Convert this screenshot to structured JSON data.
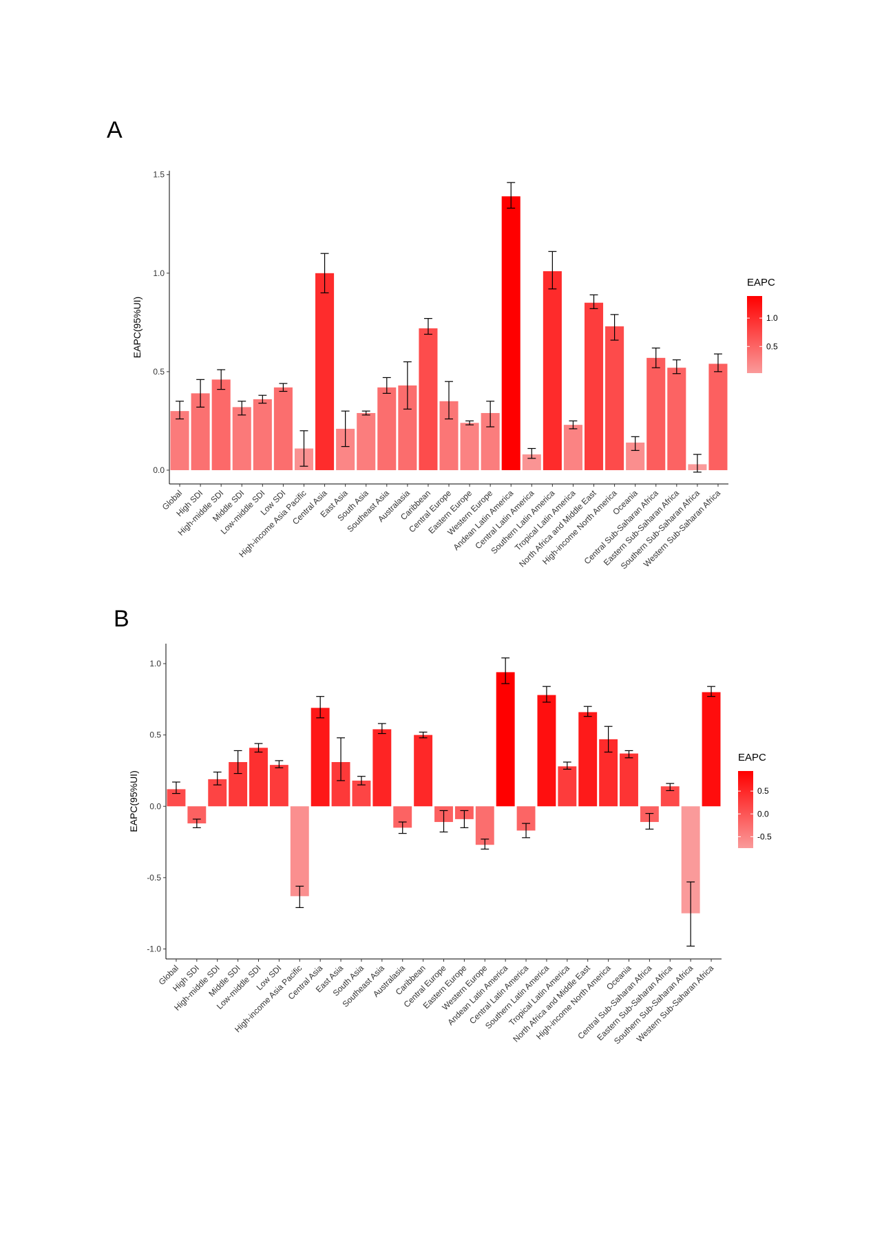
{
  "chart_data": [
    {
      "panel": "A",
      "type": "bar",
      "ylabel": "EAPC(95%UI)",
      "ylim": [
        -0.07,
        1.52
      ],
      "yticks": [
        0.0,
        0.5,
        1.0,
        1.5
      ],
      "ytick_labels": [
        "0.0",
        "0.5",
        "1.0",
        "1.5"
      ],
      "legend": {
        "title": "EAPC",
        "position": "right",
        "ticks": [
          1.0,
          0.5
        ],
        "tick_labels": [
          "1.0",
          "0.5"
        ],
        "color_low": "#fa9a9a",
        "color_high": "#ff0000"
      },
      "categories": [
        "Global",
        "High SDI",
        "High-middle SDI",
        "Middle SDI",
        "Low-middle SDI",
        "Low SDI",
        "High-income Asia Pacific",
        "Central Asia",
        "East Asia",
        "South Asia",
        "Southeast Asia",
        "Australasia",
        "Caribbean",
        "Central Europe",
        "Eastern Europe",
        "Western Europe",
        "Andean Latin America",
        "Central Latin America",
        "Southern Latin America",
        "Tropical Latin America",
        "North Africa and Middle East",
        "High-income North America",
        "Oceania",
        "Central Sub-Saharan Africa",
        "Eastern Sub-Saharan Africa",
        "Southern Sub-Saharan Africa",
        "Western Sub-Saharan Africa"
      ],
      "values": [
        0.3,
        0.39,
        0.46,
        0.32,
        0.36,
        0.42,
        0.11,
        1.0,
        0.21,
        0.29,
        0.42,
        0.43,
        0.72,
        0.35,
        0.24,
        0.29,
        1.39,
        0.08,
        1.01,
        0.23,
        0.85,
        0.73,
        0.14,
        0.57,
        0.52,
        0.03,
        0.54
      ],
      "lower": [
        0.26,
        0.32,
        0.41,
        0.28,
        0.34,
        0.4,
        0.02,
        0.9,
        0.12,
        0.28,
        0.39,
        0.31,
        0.69,
        0.26,
        0.23,
        0.22,
        1.33,
        0.06,
        0.92,
        0.21,
        0.82,
        0.66,
        0.1,
        0.52,
        0.49,
        -0.01,
        0.5
      ],
      "upper": [
        0.35,
        0.46,
        0.51,
        0.35,
        0.38,
        0.44,
        0.2,
        1.1,
        0.3,
        0.3,
        0.47,
        0.55,
        0.77,
        0.45,
        0.25,
        0.35,
        1.46,
        0.11,
        1.11,
        0.25,
        0.89,
        0.79,
        0.17,
        0.62,
        0.56,
        0.08,
        0.59
      ]
    },
    {
      "panel": "B",
      "type": "bar",
      "ylabel": "EAPC(95%UI)",
      "ylim": [
        -1.07,
        1.14
      ],
      "yticks": [
        -1.0,
        -0.5,
        0.0,
        0.5,
        1.0
      ],
      "ytick_labels": [
        "-1.0",
        "-0.5",
        "0.0",
        "0.5",
        "1.0"
      ],
      "legend": {
        "title": "EAPC",
        "position": "right",
        "ticks": [
          0.5,
          0.0,
          -0.5
        ],
        "tick_labels": [
          "0.5",
          "0.0",
          "-0.5"
        ],
        "color_low": "#fa9a9a",
        "color_high": "#ff0000"
      },
      "categories": [
        "Global",
        "High SDI",
        "High-middle SDI",
        "Middle SDI",
        "Low-middle SDI",
        "Low SDI",
        "High-income Asia Pacific",
        "Central Asia",
        "East Asia",
        "South Asia",
        "Southeast Asia",
        "Australasia",
        "Caribbean",
        "Central Europe",
        "Eastern Europe",
        "Western Europe",
        "Andean Latin America",
        "Central Latin America",
        "Southern Latin America",
        "Tropical Latin America",
        "North Africa and Middle East",
        "High-income North America",
        "Oceania",
        "Central Sub-Saharan Africa",
        "Eastern Sub-Saharan Africa",
        "Southern Sub-Saharan Africa",
        "Western Sub-Saharan Africa"
      ],
      "values": [
        0.12,
        -0.12,
        0.19,
        0.31,
        0.41,
        0.29,
        -0.63,
        0.69,
        0.31,
        0.18,
        0.54,
        -0.15,
        0.5,
        -0.11,
        -0.09,
        -0.27,
        0.94,
        -0.17,
        0.78,
        0.28,
        0.66,
        0.47,
        0.37,
        -0.11,
        0.14,
        -0.75,
        0.8
      ],
      "lower": [
        0.09,
        -0.15,
        0.15,
        0.23,
        0.38,
        0.27,
        -0.71,
        0.62,
        0.18,
        0.15,
        0.51,
        -0.19,
        0.48,
        -0.18,
        -0.15,
        -0.3,
        0.86,
        -0.22,
        0.73,
        0.26,
        0.63,
        0.38,
        0.34,
        -0.16,
        0.11,
        -0.98,
        0.77
      ],
      "upper": [
        0.17,
        -0.09,
        0.24,
        0.39,
        0.44,
        0.32,
        -0.56,
        0.77,
        0.48,
        0.21,
        0.58,
        -0.11,
        0.52,
        -0.03,
        -0.03,
        -0.23,
        1.04,
        -0.12,
        0.84,
        0.31,
        0.7,
        0.56,
        0.39,
        -0.05,
        0.16,
        -0.53,
        0.84
      ]
    }
  ]
}
